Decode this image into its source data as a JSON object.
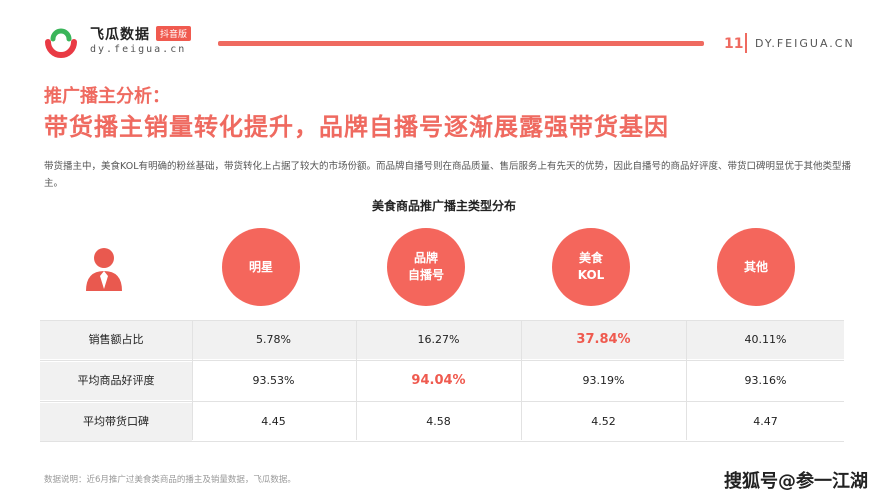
{
  "header": {
    "brand": "飞瓜数据",
    "badge": "抖音版",
    "domain": "dy.feigua.cn",
    "page_number": "11",
    "site": "DY.FEIGUA.CN"
  },
  "title_line1": "推广播主分析：",
  "title_line2": "带货播主销量转化提升，品牌自播号逐渐展露强带货基因",
  "description": "带货播主中，美食KOL有明确的粉丝基础，带货转化上占据了较大的市场份额。而品牌自播号则在商品质量、售后服务上有先天的优势，因此自播号的商品好评度、带货口碑明显优于其他类型播主。",
  "table_title": "美食商品推广播主类型分布",
  "columns": [
    {
      "line1": "明星",
      "line2": ""
    },
    {
      "line1": "品牌",
      "line2": "自播号"
    },
    {
      "line1": "美食",
      "line2": "KOL"
    },
    {
      "line1": "其他",
      "line2": ""
    }
  ],
  "rows": [
    {
      "label": "销售额占比",
      "values": [
        "5.78%",
        "16.27%",
        "37.84%",
        "40.11%"
      ],
      "highlight_index": 2
    },
    {
      "label": "平均商品好评度",
      "values": [
        "93.53%",
        "94.04%",
        "93.19%",
        "93.16%"
      ],
      "highlight_index": 1
    },
    {
      "label": "平均带货口碑",
      "values": [
        "4.45",
        "4.58",
        "4.52",
        "4.47"
      ],
      "highlight_index": -1
    }
  ],
  "source_note": "数据说明：近6月推广过美食类商品的播主及销量数据，飞瓜数据。",
  "watermark": "搜狐号@参一江湖",
  "colors": {
    "accent": "#ef6a60",
    "circle": "#f4665c",
    "row_gray": "#f1f1f1"
  }
}
